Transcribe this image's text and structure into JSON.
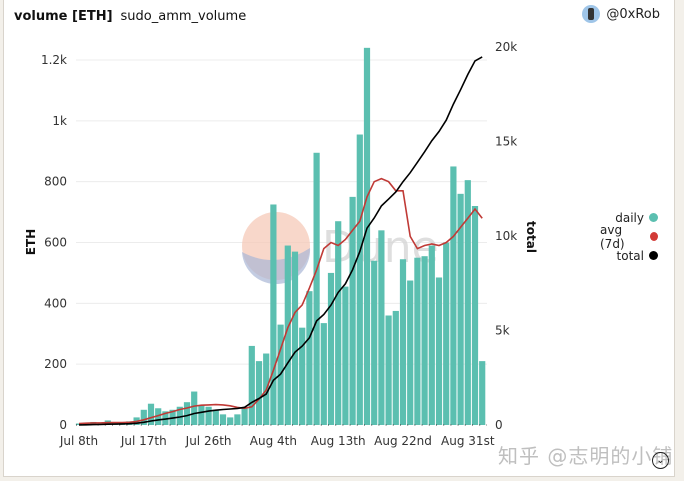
{
  "header": {
    "title": "volume [ETH]",
    "query_name": "sudo_amm_volume",
    "author": "@0xRob"
  },
  "legend": {
    "items": [
      {
        "label": "daily",
        "color": "#5bbfb0"
      },
      {
        "label": "avg (7d)",
        "color": "#d23b37"
      },
      {
        "label": "total",
        "color": "#000000"
      }
    ]
  },
  "axes": {
    "left_label": "ETH",
    "right_label": "total",
    "left_ticks": [
      "0",
      "200",
      "400",
      "600",
      "800",
      "1k",
      "1.2k"
    ],
    "right_ticks": [
      "0",
      "5k",
      "10k",
      "15k",
      "20k"
    ],
    "x_ticks": [
      "Jul 8th",
      "Jul 17th",
      "Jul 26th",
      "Aug 4th",
      "Aug 13th",
      "Aug 22nd",
      "Aug 31st"
    ]
  },
  "watermark": {
    "dune": "Dune",
    "zhihu": "知乎 @志明的小铺"
  },
  "expand_icon": "chevron-down-circle",
  "chart_data": {
    "type": "bar",
    "title": "volume [ETH]",
    "subtitle": "sudo_amm_volume",
    "xlabel": "",
    "ylabel": "ETH",
    "y2label": "total",
    "ylim": [
      0,
      1200
    ],
    "y2lim": [
      0,
      20000
    ],
    "grid": true,
    "legend_position": "right",
    "categories": [
      "Jul 8",
      "Jul 9",
      "Jul 10",
      "Jul 11",
      "Jul 12",
      "Jul 13",
      "Jul 14",
      "Jul 15",
      "Jul 16",
      "Jul 17",
      "Jul 18",
      "Jul 19",
      "Jul 20",
      "Jul 21",
      "Jul 22",
      "Jul 23",
      "Jul 24",
      "Jul 25",
      "Jul 26",
      "Jul 27",
      "Jul 28",
      "Jul 29",
      "Jul 30",
      "Jul 31",
      "Aug 1",
      "Aug 2",
      "Aug 3",
      "Aug 4",
      "Aug 5",
      "Aug 6",
      "Aug 7",
      "Aug 8",
      "Aug 9",
      "Aug 10",
      "Aug 11",
      "Aug 12",
      "Aug 13",
      "Aug 14",
      "Aug 15",
      "Aug 16",
      "Aug 17",
      "Aug 18",
      "Aug 19",
      "Aug 20",
      "Aug 21",
      "Aug 22",
      "Aug 23",
      "Aug 24",
      "Aug 25",
      "Aug 26",
      "Aug 27",
      "Aug 28",
      "Aug 29",
      "Aug 30",
      "Aug 31",
      "Sep 1",
      "Sep 2"
    ],
    "series": [
      {
        "name": "daily",
        "type": "bar",
        "axis": "left",
        "values": [
          5,
          8,
          10,
          6,
          15,
          5,
          8,
          12,
          25,
          50,
          70,
          55,
          45,
          50,
          60,
          75,
          110,
          65,
          60,
          50,
          35,
          25,
          35,
          55,
          260,
          210,
          235,
          725,
          330,
          590,
          570,
          320,
          440,
          895,
          335,
          500,
          670,
          455,
          750,
          955,
          1240,
          540,
          640,
          360,
          375,
          545,
          475,
          550,
          555,
          590,
          485,
          600,
          850,
          760,
          805,
          720,
          210
        ]
      },
      {
        "name": "avg (7d)",
        "type": "line",
        "axis": "left",
        "values": [
          5,
          6,
          7,
          7,
          8,
          8,
          8,
          9,
          12,
          17,
          24,
          31,
          38,
          44,
          51,
          56,
          62,
          65,
          66,
          67,
          66,
          63,
          58,
          55,
          60,
          85,
          115,
          180,
          250,
          320,
          370,
          395,
          450,
          510,
          580,
          600,
          590,
          610,
          640,
          670,
          750,
          800,
          810,
          800,
          770,
          770,
          620,
          580,
          590,
          595,
          590,
          600,
          620,
          650,
          680,
          710,
          680
        ]
      },
      {
        "name": "total",
        "type": "line",
        "axis": "right",
        "values": [
          5,
          13,
          23,
          29,
          44,
          49,
          57,
          69,
          94,
          144,
          214,
          269,
          314,
          364,
          424,
          499,
          609,
          674,
          734,
          784,
          819,
          844,
          879,
          934,
          1194,
          1404,
          1639,
          2364,
          2694,
          3284,
          3854,
          4174,
          4614,
          5509,
          5844,
          6344,
          7014,
          7469,
          8219,
          9174,
          10414,
          10954,
          11594,
          11954,
          12329,
          12874,
          13349,
          13899,
          14454,
          15044,
          15529,
          16129,
          16979,
          17739,
          18544,
          19264,
          19474
        ]
      }
    ]
  }
}
